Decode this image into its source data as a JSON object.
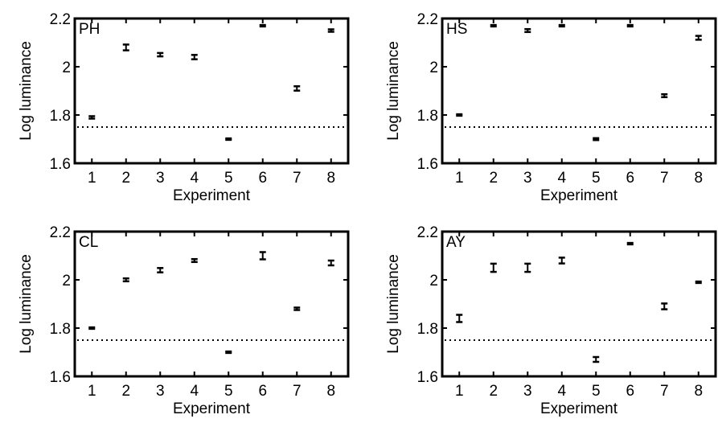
{
  "figure": {
    "background": "#ffffff",
    "ink": "#000000"
  },
  "chart_data": [
    {
      "type": "scatter",
      "panel_label": "PH",
      "xlabel": "Experiment",
      "ylabel": "Log luminance",
      "xlim": [
        0.5,
        8.5
      ],
      "ylim": [
        1.6,
        2.2
      ],
      "xticks": [
        1,
        2,
        3,
        4,
        5,
        6,
        7,
        8
      ],
      "yticks": [
        1.6,
        1.8,
        2,
        2.2
      ],
      "ytick_labels": [
        "1.6",
        "1.8",
        "2",
        "2.2"
      ],
      "reference_line": 1.75,
      "grid": false,
      "points": [
        {
          "x": 1,
          "y": 1.79,
          "err": 0.005
        },
        {
          "x": 2,
          "y": 2.08,
          "err": 0.012
        },
        {
          "x": 3,
          "y": 2.05,
          "err": 0.007
        },
        {
          "x": 4,
          "y": 2.04,
          "err": 0.009
        },
        {
          "x": 5,
          "y": 1.7,
          "err": 0.003
        },
        {
          "x": 6,
          "y": 2.17,
          "err": 0.003
        },
        {
          "x": 7,
          "y": 1.91,
          "err": 0.009
        },
        {
          "x": 8,
          "y": 2.15,
          "err": 0.005
        }
      ]
    },
    {
      "type": "scatter",
      "panel_label": "HS",
      "xlabel": "Experiment",
      "ylabel": "Log luminance",
      "xlim": [
        0.5,
        8.5
      ],
      "ylim": [
        1.6,
        2.2
      ],
      "xticks": [
        1,
        2,
        3,
        4,
        5,
        6,
        7,
        8
      ],
      "yticks": [
        1.6,
        1.8,
        2,
        2.2
      ],
      "ytick_labels": [
        "1.6",
        "1.8",
        "2",
        "2.2"
      ],
      "reference_line": 1.75,
      "grid": false,
      "points": [
        {
          "x": 1,
          "y": 1.8,
          "err": 0.003
        },
        {
          "x": 2,
          "y": 2.17,
          "err": 0.003
        },
        {
          "x": 3,
          "y": 2.15,
          "err": 0.006
        },
        {
          "x": 4,
          "y": 2.17,
          "err": 0.003
        },
        {
          "x": 5,
          "y": 1.7,
          "err": 0.004
        },
        {
          "x": 6,
          "y": 2.17,
          "err": 0.003
        },
        {
          "x": 7,
          "y": 1.88,
          "err": 0.006
        },
        {
          "x": 8,
          "y": 2.12,
          "err": 0.008
        }
      ]
    },
    {
      "type": "scatter",
      "panel_label": "CL",
      "xlabel": "Experiment",
      "ylabel": "Log luminance",
      "xlim": [
        0.5,
        8.5
      ],
      "ylim": [
        1.6,
        2.2
      ],
      "xticks": [
        1,
        2,
        3,
        4,
        5,
        6,
        7,
        8
      ],
      "yticks": [
        1.6,
        1.8,
        2,
        2.2
      ],
      "ytick_labels": [
        "1.6",
        "1.8",
        "2",
        "2.2"
      ],
      "reference_line": 1.75,
      "grid": false,
      "points": [
        {
          "x": 1,
          "y": 1.8,
          "err": 0.003
        },
        {
          "x": 2,
          "y": 2.0,
          "err": 0.006
        },
        {
          "x": 3,
          "y": 2.04,
          "err": 0.009
        },
        {
          "x": 4,
          "y": 2.08,
          "err": 0.006
        },
        {
          "x": 5,
          "y": 1.7,
          "err": 0.003
        },
        {
          "x": 6,
          "y": 2.1,
          "err": 0.015
        },
        {
          "x": 7,
          "y": 1.88,
          "err": 0.005
        },
        {
          "x": 8,
          "y": 2.07,
          "err": 0.01
        }
      ]
    },
    {
      "type": "scatter",
      "panel_label": "AY",
      "xlabel": "Experiment",
      "ylabel": "Log luminance",
      "xlim": [
        0.5,
        8.5
      ],
      "ylim": [
        1.6,
        2.2
      ],
      "xticks": [
        1,
        2,
        3,
        4,
        5,
        6,
        7,
        8
      ],
      "yticks": [
        1.6,
        1.8,
        2,
        2.2
      ],
      "ytick_labels": [
        "1.6",
        "1.8",
        "2",
        "2.2"
      ],
      "reference_line": 1.75,
      "grid": false,
      "points": [
        {
          "x": 1,
          "y": 1.84,
          "err": 0.015
        },
        {
          "x": 2,
          "y": 2.05,
          "err": 0.017
        },
        {
          "x": 3,
          "y": 2.05,
          "err": 0.017
        },
        {
          "x": 4,
          "y": 2.08,
          "err": 0.012
        },
        {
          "x": 5,
          "y": 1.67,
          "err": 0.01
        },
        {
          "x": 6,
          "y": 2.15,
          "err": 0.003
        },
        {
          "x": 7,
          "y": 1.89,
          "err": 0.012
        },
        {
          "x": 8,
          "y": 1.99,
          "err": 0.003
        }
      ]
    }
  ]
}
